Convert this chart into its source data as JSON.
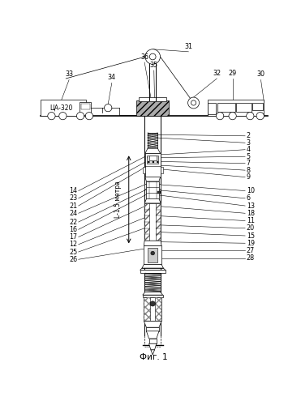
{
  "title": "Фиг. 1",
  "bg_color": "#ffffff",
  "line_color": "#000000",
  "label_fontsize": 5.8,
  "title_fontsize": 7.5
}
